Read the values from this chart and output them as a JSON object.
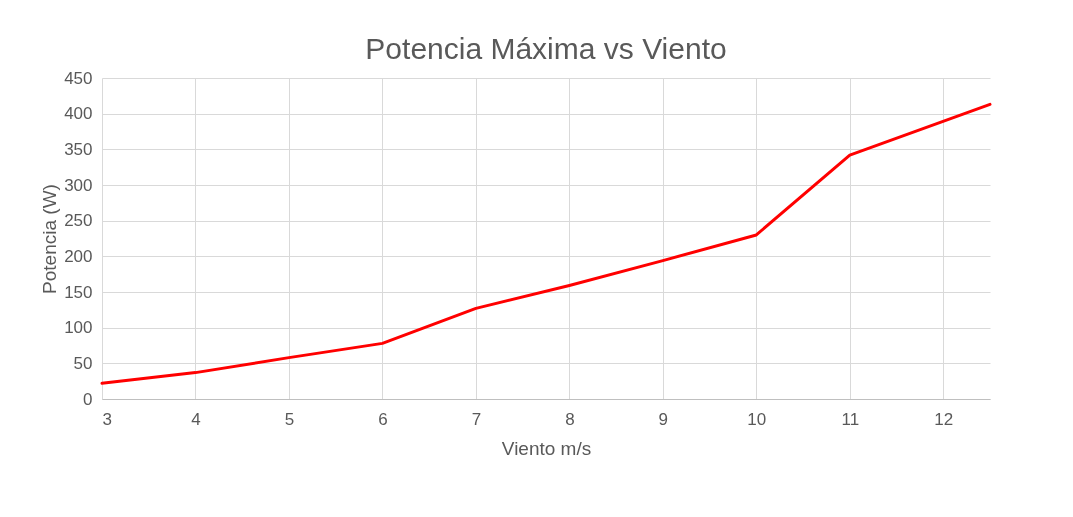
{
  "chart_data": {
    "type": "line",
    "title": "Potencia Máxima vs Viento",
    "xlabel": "Viento m/s",
    "ylabel": "Potencia (W)",
    "x": [
      3,
      4,
      5,
      6,
      7,
      8,
      9,
      10,
      11,
      12.5
    ],
    "series": [
      {
        "color": "#ff0000",
        "values": [
          22,
          37,
          58,
          78,
          127,
          159,
          194,
          230,
          342,
          413
        ]
      }
    ],
    "xlim": [
      3,
      12.5
    ],
    "xticks": [
      3,
      4,
      5,
      6,
      7,
      8,
      9,
      10,
      11,
      12
    ],
    "ylim": [
      0,
      450
    ],
    "yticks": [
      0,
      50,
      100,
      150,
      200,
      250,
      300,
      350,
      400,
      450
    ],
    "grid": true,
    "legend": false,
    "marker": "none",
    "line_style": "solid"
  }
}
